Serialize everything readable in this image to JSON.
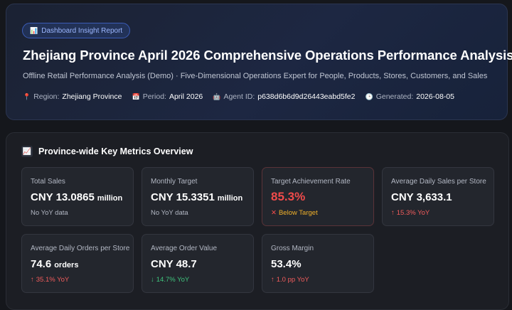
{
  "header": {
    "badge": "Dashboard Insight Report",
    "badge_icon": "bar-chart-icon",
    "title": "Zhejiang Province April 2026 Comprehensive Operations Performance Analysis",
    "subtitle": "Offline Retail Performance Analysis (Demo) · Five-Dimensional Operations Expert for People, Products, Stores, Customers, and Sales",
    "meta": [
      {
        "icon": "pin-icon",
        "label": "Region:",
        "value": "Zhejiang Province"
      },
      {
        "icon": "calendar-icon",
        "label": "Period:",
        "value": "April 2026"
      },
      {
        "icon": "robot-icon",
        "label": "Agent ID:",
        "value": "p638d6b6d9d26443eabd5fe2"
      },
      {
        "icon": "clock-icon",
        "label": "Generated:",
        "value": "2026-08-05"
      }
    ]
  },
  "metrics_section": {
    "title": "Province-wide Key Metrics Overview",
    "icon": "chart-up-icon",
    "cards": [
      {
        "label": "Total Sales",
        "value": "CNY 13.0865",
        "unit": "million",
        "sub": "No YoY data"
      },
      {
        "label": "Monthly Target",
        "value": "CNY 15.3351",
        "unit": "million",
        "sub": "No YoY data"
      },
      {
        "label": "Target Achievement Rate",
        "value": "85.3%",
        "unit": "",
        "sub": "Below Target",
        "sub_icon": "✕"
      },
      {
        "label": "Average Daily Sales per Store",
        "value": "CNY 3,633.1",
        "unit": "",
        "sub": "15.3% YoY",
        "arrow": "↑"
      },
      {
        "label": "Average Daily Orders per Store",
        "value": "74.6",
        "unit": "orders",
        "sub": "35.1% YoY",
        "arrow": "↑"
      },
      {
        "label": "Average Order Value",
        "value": "CNY 48.7",
        "unit": "",
        "sub": "14.7% YoY",
        "arrow": "↓"
      },
      {
        "label": "Gross Margin",
        "value": "53.4%",
        "unit": "",
        "sub": "1.0 pp YoY",
        "arrow": "↑"
      }
    ]
  },
  "colors": {
    "up": "#f25c5c",
    "down": "#3fc47d",
    "warning": "#f0b02a",
    "danger": "#f04b4b",
    "accent": "#9cb7ff"
  }
}
